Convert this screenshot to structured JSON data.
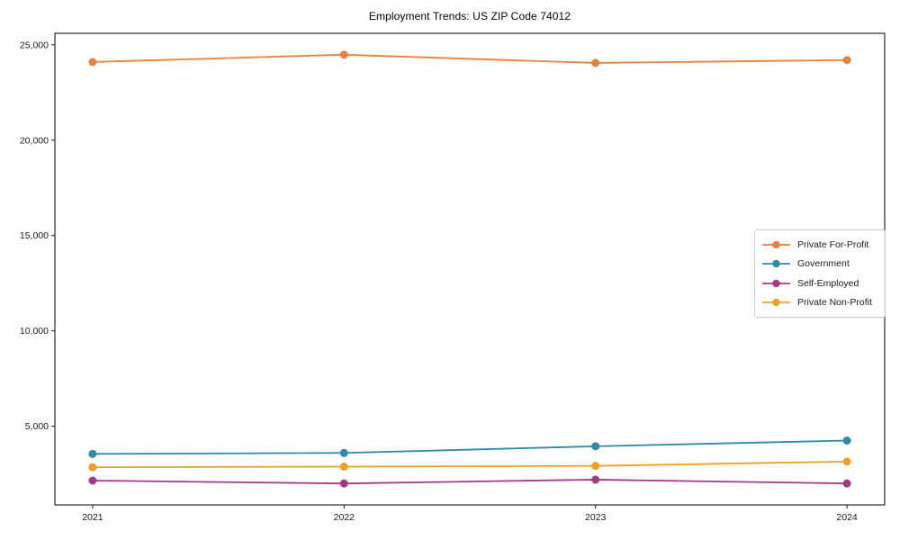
{
  "chart": {
    "title": "Employment Trends: US ZIP Code 74012"
  },
  "chart_data": {
    "type": "line",
    "title": "Employment Trends: US ZIP Code 74012",
    "xlabel": "",
    "ylabel": "",
    "categories": [
      "2021",
      "2022",
      "2023",
      "2024"
    ],
    "series": [
      {
        "name": "Private For-Profit",
        "color": "#e8813c",
        "values": [
          24100,
          24480,
          24050,
          24200
        ]
      },
      {
        "name": "Government",
        "color": "#2e8ba6",
        "values": [
          3550,
          3600,
          3950,
          4250
        ]
      },
      {
        "name": "Self-Employed",
        "color": "#a23b85",
        "values": [
          2150,
          2000,
          2200,
          2000
        ]
      },
      {
        "name": "Private Non-Profit",
        "color": "#f0a125",
        "values": [
          2850,
          2880,
          2920,
          3150
        ]
      }
    ],
    "yticks": [
      5000,
      10000,
      15000,
      20000,
      25000
    ],
    "ytick_labels": [
      "5,000",
      "10,000",
      "15,000",
      "20,000",
      "25,000"
    ],
    "ylim": [
      876,
      25604
    ],
    "grid": false,
    "legend_position": "center-right",
    "marker": "circle",
    "axis_color": "#000000",
    "tick_label_color": "#1a1a1a"
  }
}
